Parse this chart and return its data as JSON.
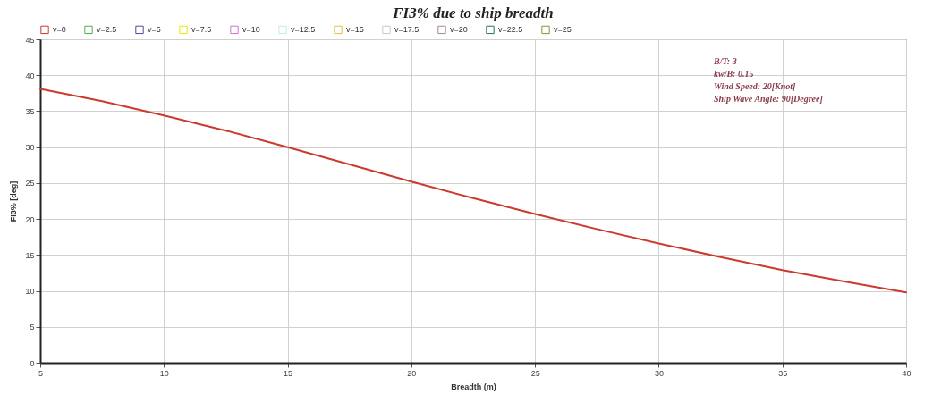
{
  "chart_data": {
    "type": "line",
    "title": "FI3% due to ship breadth",
    "xlabel": "Breadth (m)",
    "ylabel": "FI3% [deg]",
    "x": [
      5,
      7.5,
      10,
      12.5,
      15,
      17.5,
      20,
      22.5,
      25,
      27.5,
      30,
      32.5,
      35,
      37.5,
      40
    ],
    "series": [
      {
        "name": "v=0",
        "color": "#cc3a2e",
        "values": [
          38.1,
          36.4,
          34.4,
          32.3,
          30.0,
          27.6,
          25.2,
          22.9,
          20.7,
          18.6,
          16.6,
          14.7,
          12.9,
          11.3,
          9.8
        ]
      },
      {
        "name": "v=2.5",
        "color": "#4caf50",
        "values": [
          null,
          null,
          null,
          null,
          null,
          null,
          null,
          null,
          null,
          null,
          null,
          null,
          null,
          null,
          null
        ]
      },
      {
        "name": "v=5",
        "color": "#4a4a9a",
        "values": [
          null,
          null,
          null,
          null,
          null,
          null,
          null,
          null,
          null,
          null,
          null,
          null,
          null,
          null,
          null
        ]
      },
      {
        "name": "v=7.5",
        "color": "#e8e800",
        "values": [
          null,
          null,
          null,
          null,
          null,
          null,
          null,
          null,
          null,
          null,
          null,
          null,
          null,
          null,
          null
        ]
      },
      {
        "name": "v=10",
        "color": "#d070d0",
        "values": [
          null,
          null,
          null,
          null,
          null,
          null,
          null,
          null,
          null,
          null,
          null,
          null,
          null,
          null,
          null
        ]
      },
      {
        "name": "v=12.5",
        "color": "#c0eedd",
        "values": [
          null,
          null,
          null,
          null,
          null,
          null,
          null,
          null,
          null,
          null,
          null,
          null,
          null,
          null,
          null
        ]
      },
      {
        "name": "v=15",
        "color": "#e0c040",
        "values": [
          null,
          null,
          null,
          null,
          null,
          null,
          null,
          null,
          null,
          null,
          null,
          null,
          null,
          null,
          null
        ]
      },
      {
        "name": "v=17.5",
        "color": "#c8c8c8",
        "values": [
          null,
          null,
          null,
          null,
          null,
          null,
          null,
          null,
          null,
          null,
          null,
          null,
          null,
          null,
          null
        ]
      },
      {
        "name": "v=20",
        "color": "#a08890",
        "values": [
          null,
          null,
          null,
          null,
          null,
          null,
          null,
          null,
          null,
          null,
          null,
          null,
          null,
          null,
          null
        ]
      },
      {
        "name": "v=22.5",
        "color": "#2a7050",
        "values": [
          null,
          null,
          null,
          null,
          null,
          null,
          null,
          null,
          null,
          null,
          null,
          null,
          null,
          null,
          null
        ]
      },
      {
        "name": "v=25",
        "color": "#7a9a30",
        "values": [
          null,
          null,
          null,
          null,
          null,
          null,
          null,
          null,
          null,
          null,
          null,
          null,
          null,
          null,
          null
        ]
      }
    ],
    "xlim": [
      5,
      40
    ],
    "xticks": [
      5,
      10,
      15,
      20,
      25,
      30,
      35,
      40
    ],
    "ylim": [
      0,
      45
    ],
    "yticks": [
      0,
      5,
      10,
      15,
      20,
      25,
      30,
      35,
      40,
      45
    ],
    "grid": true,
    "legend": "top",
    "annotations": [
      "B/T: 3",
      "kw/B: 0.15",
      "Wind Speed: 20[Knot]",
      "Ship Wave Angle: 90[Degree]"
    ]
  }
}
